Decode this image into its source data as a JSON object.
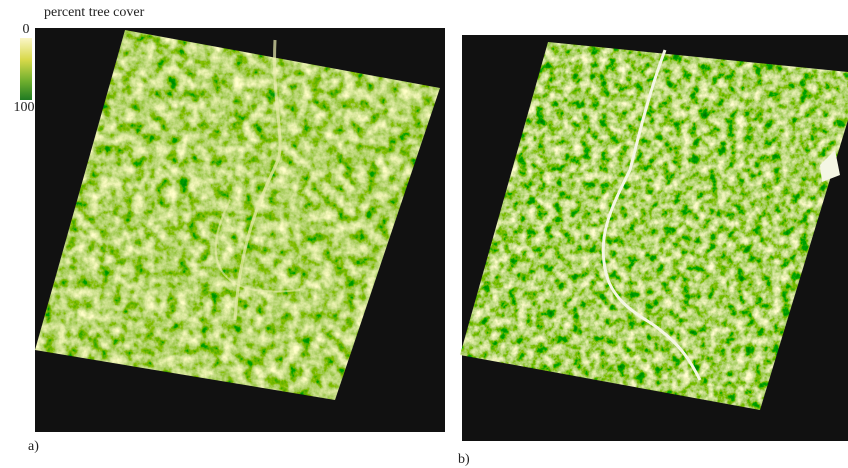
{
  "legend": {
    "title": "percent tree cover",
    "min_label": "0",
    "max_label": "100"
  },
  "panels": [
    {
      "label": "a)"
    },
    {
      "label": "b)"
    }
  ]
}
